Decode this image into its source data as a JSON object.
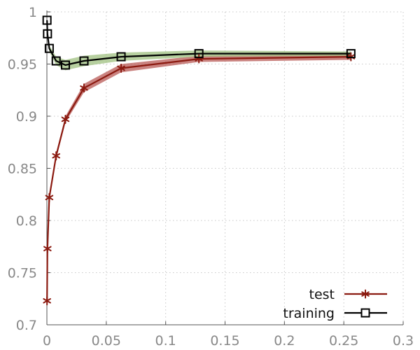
{
  "chart_data": {
    "type": "line",
    "title": "",
    "xlabel": "",
    "ylabel": "",
    "xlim": [
      0,
      0.3
    ],
    "ylim": [
      0.7,
      1.0
    ],
    "x_ticks": [
      0,
      0.05,
      0.1,
      0.15,
      0.2,
      0.25,
      0.3
    ],
    "x_tick_labels": [
      "0",
      "0.05",
      "0.1",
      "0.15",
      "0.2",
      "0.25",
      "0.3"
    ],
    "y_ticks": [
      0.7,
      0.75,
      0.8,
      0.85,
      0.9,
      0.95,
      1.0
    ],
    "y_tick_labels": [
      "0.7",
      "0.75",
      "0.8",
      "0.85",
      "0.9",
      "0.95",
      "1"
    ],
    "grid": true,
    "legend_position": "bottom-right",
    "series": [
      {
        "name": "test",
        "color": "#8b1a10",
        "band_color": "#b85a55",
        "marker": "asterisk",
        "x": [
          0.0001,
          0.0005,
          0.002,
          0.0078,
          0.0156,
          0.03125,
          0.0625,
          0.128,
          0.256
        ],
        "y": [
          0.723,
          0.773,
          0.822,
          0.862,
          0.897,
          0.927,
          0.946,
          0.955,
          0.957
        ],
        "band": [
          0.002,
          0.002,
          0.003,
          0.003,
          0.003,
          0.004,
          0.004,
          0.003,
          0.003
        ]
      },
      {
        "name": "training",
        "color": "#000000",
        "band_color": "#9fc080",
        "marker": "square",
        "x": [
          0.0001,
          0.0005,
          0.002,
          0.0078,
          0.0156,
          0.03125,
          0.0625,
          0.128,
          0.256
        ],
        "y": [
          0.992,
          0.979,
          0.965,
          0.953,
          0.949,
          0.953,
          0.957,
          0.96,
          0.96
        ],
        "band": [
          0.001,
          0.002,
          0.003,
          0.004,
          0.005,
          0.005,
          0.004,
          0.003,
          0.002
        ]
      }
    ]
  }
}
